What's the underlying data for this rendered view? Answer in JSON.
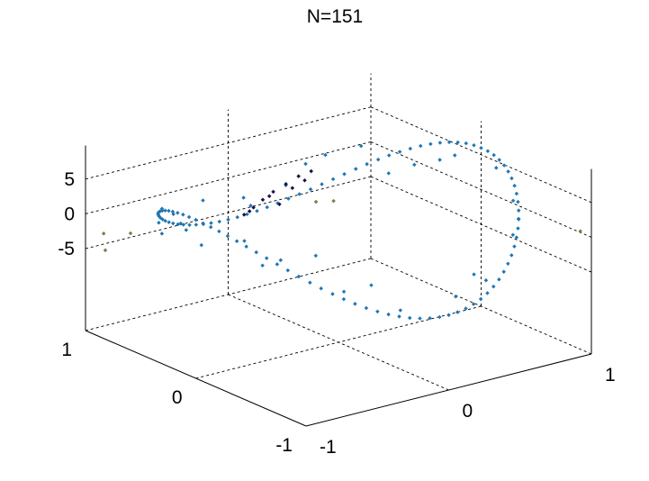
{
  "chart_data": {
    "type": "scatter3d",
    "title": "N=151",
    "xlabel": "",
    "ylabel": "",
    "zlabel": "",
    "xlim": [
      -1,
      1
    ],
    "ylim": [
      -1,
      1
    ],
    "zlim": [
      -9,
      9
    ],
    "x_ticks": [
      -1,
      0,
      1
    ],
    "y_ticks": [
      -1,
      0,
      1
    ],
    "z_ticks": [
      -5,
      0,
      5
    ],
    "x_tick_labels": [
      "-1",
      "0",
      "1"
    ],
    "y_tick_labels": [
      "-1",
      "0",
      "1"
    ],
    "z_tick_labels": [
      "-5",
      "0",
      "5"
    ],
    "grid": true,
    "n_points": 151,
    "colors": {
      "ring": "#1f77b4",
      "inner": "#1a0f4a",
      "outlier": "#7f7a4a"
    },
    "series": [
      {
        "color_key": "ring",
        "points": [
          [
            1.0,
            0.0,
            5.98
          ],
          [
            0.998,
            0.063,
            5.94
          ],
          [
            0.992,
            0.126,
            5.81
          ],
          [
            0.982,
            0.188,
            5.58
          ],
          [
            0.969,
            0.249,
            5.26
          ],
          [
            0.951,
            0.309,
            4.85
          ],
          [
            0.93,
            0.368,
            4.38
          ],
          [
            0.905,
            0.426,
            3.83
          ],
          [
            0.876,
            0.482,
            3.22
          ],
          [
            0.844,
            0.536,
            2.56
          ],
          [
            0.809,
            0.588,
            1.86
          ],
          [
            0.771,
            0.637,
            1.12
          ],
          [
            0.729,
            0.685,
            0.36
          ],
          [
            0.685,
            0.729,
            -0.41
          ],
          [
            0.637,
            0.771,
            -1.18
          ],
          [
            0.588,
            0.809,
            -1.92
          ],
          [
            0.536,
            0.844,
            -2.62
          ],
          [
            0.482,
            0.876,
            -3.28
          ],
          [
            0.426,
            0.905,
            -3.89
          ],
          [
            0.368,
            0.93,
            -4.43
          ],
          [
            0.309,
            0.951,
            -4.9
          ],
          [
            0.249,
            0.969,
            -5.3
          ],
          [
            0.188,
            0.982,
            -5.61
          ],
          [
            0.126,
            0.992,
            -5.83
          ],
          [
            0.063,
            0.998,
            -5.96
          ],
          [
            0.0,
            1.0,
            -6.0
          ],
          [
            -0.063,
            0.998,
            -5.94
          ],
          [
            -0.126,
            0.992,
            -5.79
          ],
          [
            -0.188,
            0.982,
            -5.56
          ],
          [
            -0.249,
            0.969,
            -5.24
          ],
          [
            -0.309,
            0.951,
            -4.83
          ],
          [
            -0.368,
            0.93,
            -4.35
          ],
          [
            -0.426,
            0.905,
            -3.81
          ],
          [
            -0.482,
            0.876,
            -3.2
          ],
          [
            -0.536,
            0.844,
            -2.54
          ],
          [
            -0.588,
            0.809,
            -1.84
          ],
          [
            -0.637,
            0.771,
            -1.1
          ],
          [
            -0.685,
            0.729,
            -0.33
          ],
          [
            -0.729,
            0.685,
            0.44
          ],
          [
            -0.771,
            0.637,
            1.2
          ],
          [
            -0.809,
            0.588,
            1.94
          ],
          [
            -0.844,
            0.536,
            2.64
          ],
          [
            -0.876,
            0.482,
            3.3
          ],
          [
            -0.905,
            0.426,
            3.9
          ],
          [
            -0.93,
            0.368,
            4.45
          ],
          [
            -0.951,
            0.309,
            4.92
          ],
          [
            -0.969,
            0.249,
            5.31
          ],
          [
            -0.982,
            0.188,
            5.62
          ],
          [
            -0.992,
            0.126,
            5.84
          ],
          [
            -0.998,
            0.063,
            5.96
          ],
          [
            -1.0,
            0.0,
            6.0
          ],
          [
            -0.998,
            -0.063,
            5.93
          ],
          [
            -0.992,
            -0.126,
            5.78
          ],
          [
            -0.982,
            -0.188,
            5.54
          ],
          [
            -0.969,
            -0.249,
            5.21
          ],
          [
            -0.951,
            -0.309,
            4.8
          ],
          [
            -0.93,
            -0.368,
            4.32
          ],
          [
            -0.905,
            -0.426,
            3.77
          ],
          [
            -0.876,
            -0.482,
            3.15
          ],
          [
            -0.844,
            -0.536,
            2.49
          ],
          [
            -0.809,
            -0.588,
            1.79
          ],
          [
            -0.771,
            -0.637,
            1.04
          ],
          [
            -0.729,
            -0.685,
            0.28
          ],
          [
            -0.685,
            -0.729,
            -0.49
          ],
          [
            -0.637,
            -0.771,
            -1.25
          ],
          [
            -0.588,
            -0.809,
            -1.98
          ],
          [
            -0.536,
            -0.844,
            -2.68
          ],
          [
            -0.482,
            -0.876,
            -3.34
          ],
          [
            -0.426,
            -0.905,
            -3.94
          ],
          [
            -0.368,
            -0.93,
            -4.48
          ],
          [
            -0.309,
            -0.951,
            -4.94
          ],
          [
            -0.249,
            -0.969,
            -5.33
          ],
          [
            -0.188,
            -0.982,
            -5.63
          ],
          [
            -0.126,
            -0.992,
            -5.85
          ],
          [
            -0.063,
            -0.998,
            -5.97
          ],
          [
            0.0,
            -1.0,
            -6.0
          ],
          [
            0.063,
            -0.998,
            -5.92
          ],
          [
            0.126,
            -0.992,
            -5.76
          ],
          [
            0.188,
            -0.982,
            -5.52
          ],
          [
            0.249,
            -0.969,
            -5.19
          ],
          [
            0.309,
            -0.951,
            -4.78
          ],
          [
            0.368,
            -0.93,
            -4.29
          ],
          [
            0.426,
            -0.905,
            -3.74
          ],
          [
            0.482,
            -0.876,
            -3.12
          ],
          [
            0.536,
            -0.844,
            -2.46
          ],
          [
            0.588,
            -0.809,
            -1.76
          ],
          [
            0.637,
            -0.771,
            -1.01
          ],
          [
            0.685,
            -0.729,
            -0.25
          ],
          [
            0.729,
            -0.685,
            0.52
          ],
          [
            0.771,
            -0.637,
            1.28
          ],
          [
            0.809,
            -0.588,
            2.01
          ],
          [
            0.844,
            -0.536,
            2.71
          ],
          [
            0.876,
            -0.482,
            3.36
          ],
          [
            0.905,
            -0.426,
            3.96
          ],
          [
            0.93,
            -0.368,
            4.5
          ],
          [
            0.951,
            -0.309,
            4.96
          ],
          [
            0.969,
            -0.249,
            5.34
          ],
          [
            0.982,
            -0.188,
            5.64
          ],
          [
            0.992,
            -0.126,
            5.86
          ],
          [
            0.998,
            -0.063,
            5.97
          ],
          [
            0.95,
            0.31,
            2.4
          ],
          [
            0.9,
            -0.42,
            1.8
          ],
          [
            -0.7,
            -0.7,
            4.1
          ],
          [
            -0.5,
            0.85,
            -1.6
          ],
          [
            0.3,
            -0.95,
            -2.9
          ],
          [
            0.7,
            0.7,
            3.0
          ],
          [
            -0.85,
            0.5,
            3.4
          ],
          [
            -0.3,
            -0.95,
            -4.1
          ],
          [
            0.1,
            0.99,
            -3.3
          ],
          [
            -0.99,
            0.1,
            3.8
          ],
          [
            0.8,
            0.58,
            -0.6
          ],
          [
            -0.58,
            -0.8,
            -1.0
          ],
          [
            0.45,
            0.88,
            0.5
          ],
          [
            -0.88,
            -0.45,
            1.9
          ],
          [
            0.2,
            -0.97,
            -1.4
          ],
          [
            0.97,
            0.2,
            3.7
          ],
          [
            -0.2,
            0.97,
            -2.0
          ],
          [
            0.62,
            -0.78,
            0.8
          ],
          [
            -0.78,
            0.62,
            0.2
          ],
          [
            0.88,
            0.45,
            1.1
          ],
          [
            -0.45,
            -0.88,
            -0.2
          ],
          [
            0.35,
            0.93,
            -2.4
          ],
          [
            -0.93,
            -0.35,
            5.0
          ],
          [
            0.05,
            -0.999,
            -3.6
          ],
          [
            -0.999,
            -0.05,
            2.7
          ],
          [
            0.76,
            -0.65,
            1.5
          ],
          [
            -0.65,
            0.76,
            -3.0
          ],
          [
            0.55,
            0.83,
            1.6
          ],
          [
            -0.83,
            -0.55,
            3.1
          ],
          [
            0.15,
            0.99,
            -4.7
          ],
          [
            -0.99,
            0.15,
            4.4
          ],
          [
            0.99,
            -0.15,
            4.2
          ]
        ]
      },
      {
        "color_key": "inner",
        "points": [
          [
            0.3,
            0.75,
            0.4
          ],
          [
            0.25,
            0.8,
            -0.8
          ],
          [
            0.2,
            0.85,
            -2.0
          ],
          [
            0.15,
            0.88,
            -3.1
          ],
          [
            0.1,
            0.9,
            -4.1
          ],
          [
            0.05,
            0.92,
            -5.0
          ],
          [
            0.35,
            0.7,
            1.2
          ],
          [
            0.28,
            0.78,
            -1.4
          ],
          [
            0.18,
            0.86,
            -2.6
          ],
          [
            0.08,
            0.91,
            -4.6
          ],
          [
            0.32,
            0.72,
            -0.1
          ],
          [
            0.22,
            0.82,
            -3.7
          ]
        ]
      },
      {
        "color_key": "outlier",
        "points": [
          [
            -0.95,
            0.9,
            -2.4
          ],
          [
            1.0,
            -0.9,
            0.2
          ],
          [
            -0.9,
            0.95,
            -5.4
          ],
          [
            0.7,
            0.95,
            -6.6
          ],
          [
            -0.7,
            0.98,
            -4.2
          ],
          [
            0.6,
            0.98,
            -6.4
          ]
        ]
      }
    ]
  }
}
